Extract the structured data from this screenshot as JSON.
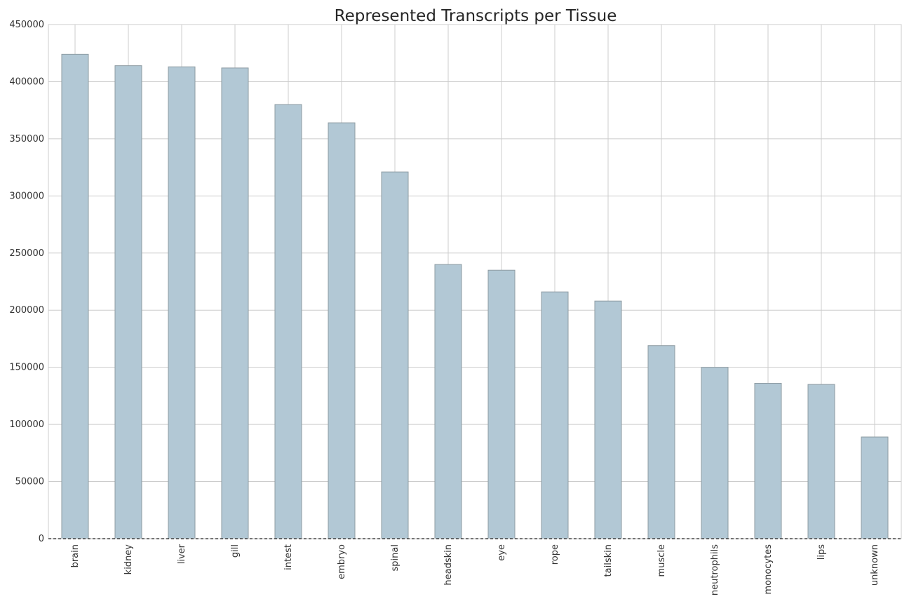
{
  "chart_data": {
    "type": "bar",
    "title": "Represented Transcripts per Tissue",
    "xlabel": "",
    "ylabel": "",
    "ylim": [
      0,
      450000
    ],
    "yticks": [
      "0",
      "50000",
      "100000",
      "150000",
      "200000",
      "250000",
      "300000",
      "350000",
      "400000",
      "450000"
    ],
    "ytick_values": [
      0,
      50000,
      100000,
      150000,
      200000,
      250000,
      300000,
      350000,
      400000,
      450000
    ],
    "categories": [
      "brain",
      "kidney",
      "liver",
      "gill",
      "intest",
      "embryo",
      "spinal",
      "headskin",
      "eye",
      "rope",
      "tailskin",
      "muscle",
      "neutrophils",
      "monocytes",
      "lips",
      "unknown"
    ],
    "values": [
      424000,
      414000,
      413000,
      412000,
      380000,
      364000,
      321000,
      240000,
      235000,
      216000,
      208000,
      169000,
      150000,
      136000,
      135000,
      89000
    ],
    "bar_color": "#b2c8d5",
    "grid": true,
    "legend": "none"
  }
}
